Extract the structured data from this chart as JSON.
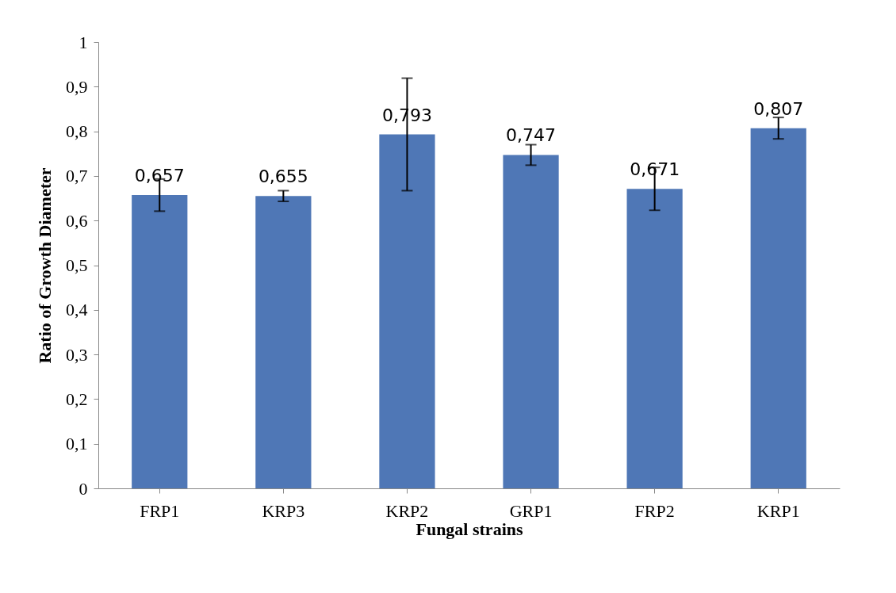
{
  "chart_data": {
    "type": "bar",
    "categories": [
      "FRP1",
      "KRP3",
      "KRP2",
      "GRP1",
      "FRP2",
      "KRP1"
    ],
    "values": [
      0.657,
      0.655,
      0.793,
      0.747,
      0.671,
      0.807
    ],
    "errors": [
      0.036,
      0.012,
      0.126,
      0.023,
      0.048,
      0.024
    ],
    "value_labels": [
      "0,657",
      "0,655",
      "0,793",
      "0,747",
      "0,671",
      "0,807"
    ],
    "color": "#4f77b6",
    "xlabel": "Fungal strains",
    "ylabel": "Ratio of Growth  Diameter",
    "ylim": [
      0,
      1
    ],
    "yticks": [
      0,
      {
        "value": 0.1,
        "label": "0,1"
      },
      {
        "value": 0.2,
        "label": "0,2"
      },
      {
        "value": 0.3,
        "label": "0,3"
      },
      {
        "value": 0.4,
        "label": "0,4"
      },
      {
        "value": 0.5,
        "label": "0,5"
      },
      {
        "value": 0.6,
        "label": "0,6"
      },
      {
        "value": 0.7,
        "label": "0,7"
      },
      {
        "value": 0.8,
        "label": "0,8"
      },
      {
        "value": 0.9,
        "label": "0,9"
      },
      1
    ],
    "grid": false
  }
}
